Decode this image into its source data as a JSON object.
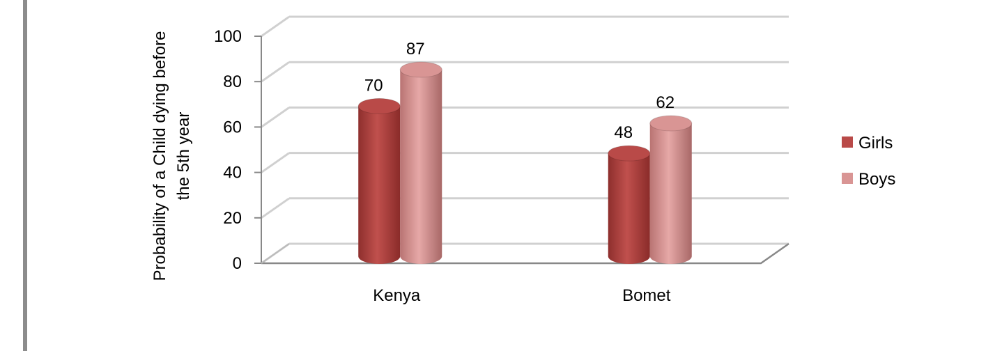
{
  "chart_data": {
    "type": "bar",
    "title": "",
    "ylabel_lines": [
      "Probability of a Child dying before",
      "the 5th year"
    ],
    "xlabel": "",
    "categories": [
      "Kenya",
      "Bomet"
    ],
    "series": [
      {
        "name": "Girls",
        "values": [
          70,
          48
        ],
        "color": "#b94a48"
      },
      {
        "name": "Boys",
        "values": [
          87,
          62
        ],
        "color": "#d99594"
      }
    ],
    "ylim": [
      0,
      100
    ],
    "yticks": [
      0,
      20,
      40,
      60,
      80,
      100
    ],
    "grid": true,
    "legend_position": "right",
    "data_labels": true,
    "style": "3d-cylinder"
  }
}
